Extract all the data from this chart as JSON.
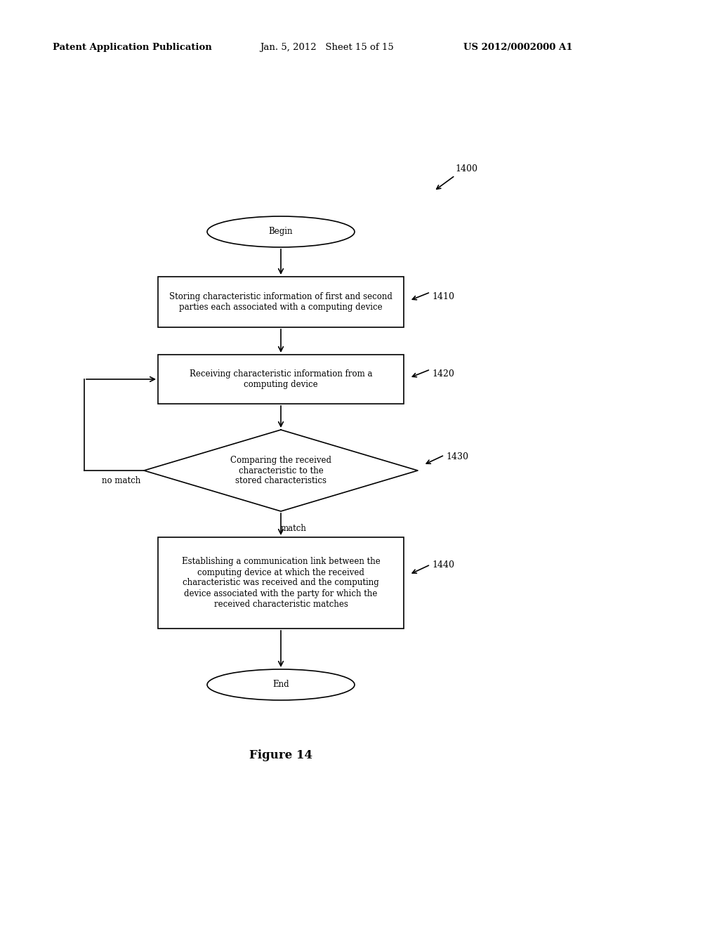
{
  "header_left": "Patent Application Publication",
  "header_mid": "Jan. 5, 2012   Sheet 15 of 15",
  "header_right": "US 2012/0002000 A1",
  "figure_label": "Figure 14",
  "diagram_label": "1400",
  "node_begin_text": "Begin",
  "node_end_text": "End",
  "node_1410_text": "Storing characteristic information of first and second\nparties each associated with a computing device",
  "node_1410_label": "1410",
  "node_1420_text": "Receiving characteristic information from a\ncomputing device",
  "node_1420_label": "1420",
  "node_1430_text": "Comparing the received\ncharacteristic to the\nstored characteristics",
  "node_1430_label": "1430",
  "node_1440_text": "Establishing a communication link between the\ncomputing device at which the received\ncharacteristic was received and the computing\ndevice associated with the party for which the\nreceived characteristic matches",
  "node_1440_label": "1440",
  "label_no_match": "no match",
  "label_match": "match",
  "bg_color": "#ffffff",
  "line_color": "#000000",
  "text_color": "#000000",
  "font_size_header": 9.5,
  "font_size_node": 8.5,
  "font_size_label": 9,
  "font_size_figure": 12
}
